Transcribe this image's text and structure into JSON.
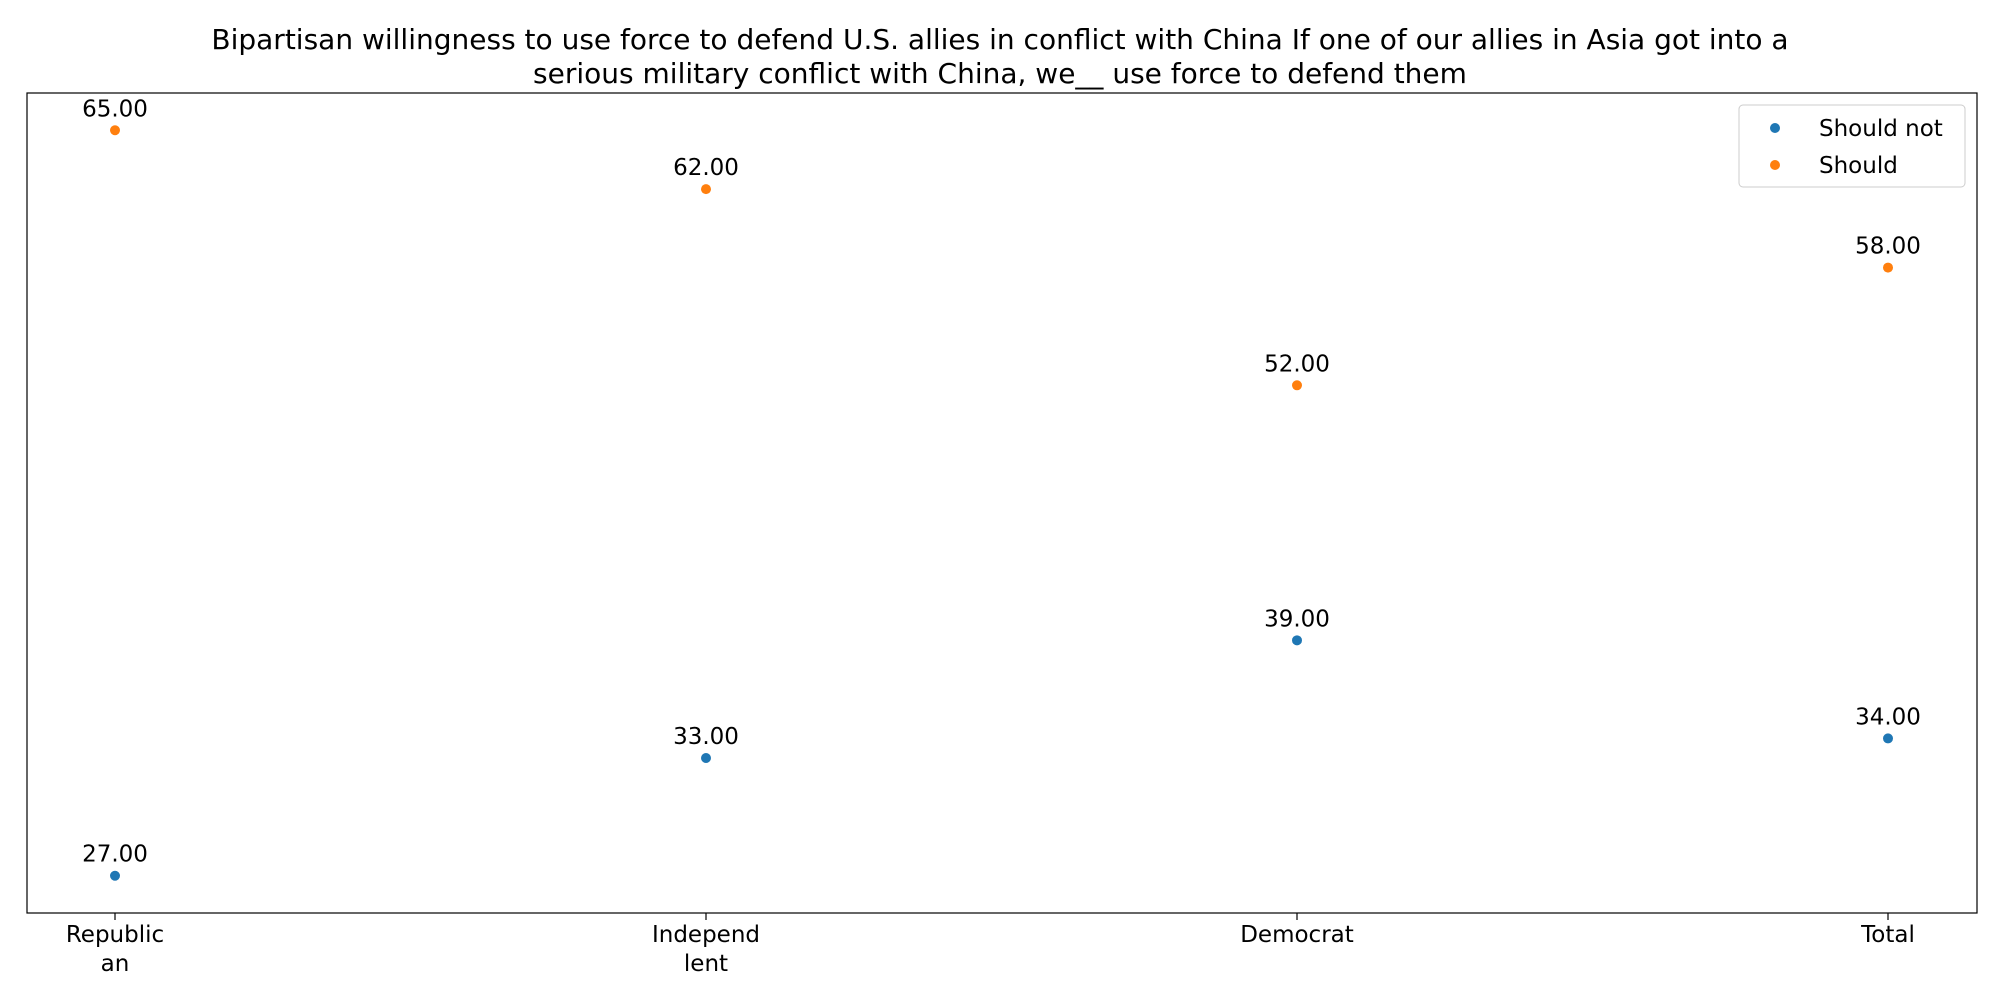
{
  "chart_data": {
    "type": "scatter",
    "title": "Bipartisan willingness to use force to defend U.S. allies in conflict with China If one of our allies in Asia got into a serious military conflict with China, we__ use force to defend them",
    "title_lines": [
      "Bipartisan willingness to use force to defend U.S. allies in conflict with China If one of our allies in Asia got into a",
      "serious military conflict with China, we__ use force to defend them"
    ],
    "categories": [
      "Republican",
      "Independlent",
      "Democrat",
      "Total"
    ],
    "category_tick_lines": [
      [
        "Republic",
        "an"
      ],
      [
        "Independ",
        "lent"
      ],
      [
        "Democrat"
      ],
      [
        "Total"
      ]
    ],
    "series": [
      {
        "name": "Should not",
        "color": "#1f77b4",
        "values": [
          27,
          33,
          39,
          34
        ]
      },
      {
        "name": "Should",
        "color": "#ff7f0e",
        "values": [
          65,
          62,
          52,
          58
        ]
      }
    ],
    "data_label_format": "2 decimals",
    "xlabel": "",
    "ylabel": "",
    "ylim": [
      25.1,
      66.9
    ],
    "y_ticks_visible": false,
    "grid": false,
    "legend_position": "top-right"
  }
}
